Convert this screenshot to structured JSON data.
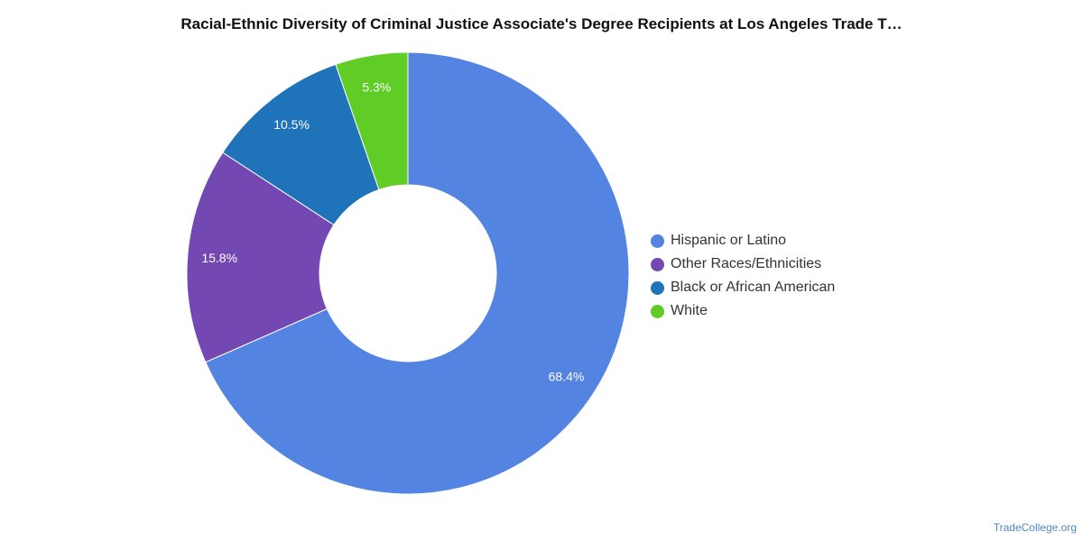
{
  "chart_data": {
    "type": "pie",
    "variant": "donut",
    "title": "Racial-Ethnic Diversity of Criminal Justice Associate's Degree Recipients at Los Angeles Trade T…",
    "categories": [
      "Hispanic or Latino",
      "Other Races/Ethnicities",
      "Black or African American",
      "White"
    ],
    "values": [
      68.4,
      15.8,
      10.5,
      5.3
    ],
    "labels": [
      "68.4%",
      "15.8%",
      "10.5%",
      "5.3%"
    ],
    "colors": [
      "#5384e2",
      "#7448b3",
      "#1f74b9",
      "#5fcd26"
    ],
    "legend_position": "right"
  },
  "source": "TradeCollege.org"
}
